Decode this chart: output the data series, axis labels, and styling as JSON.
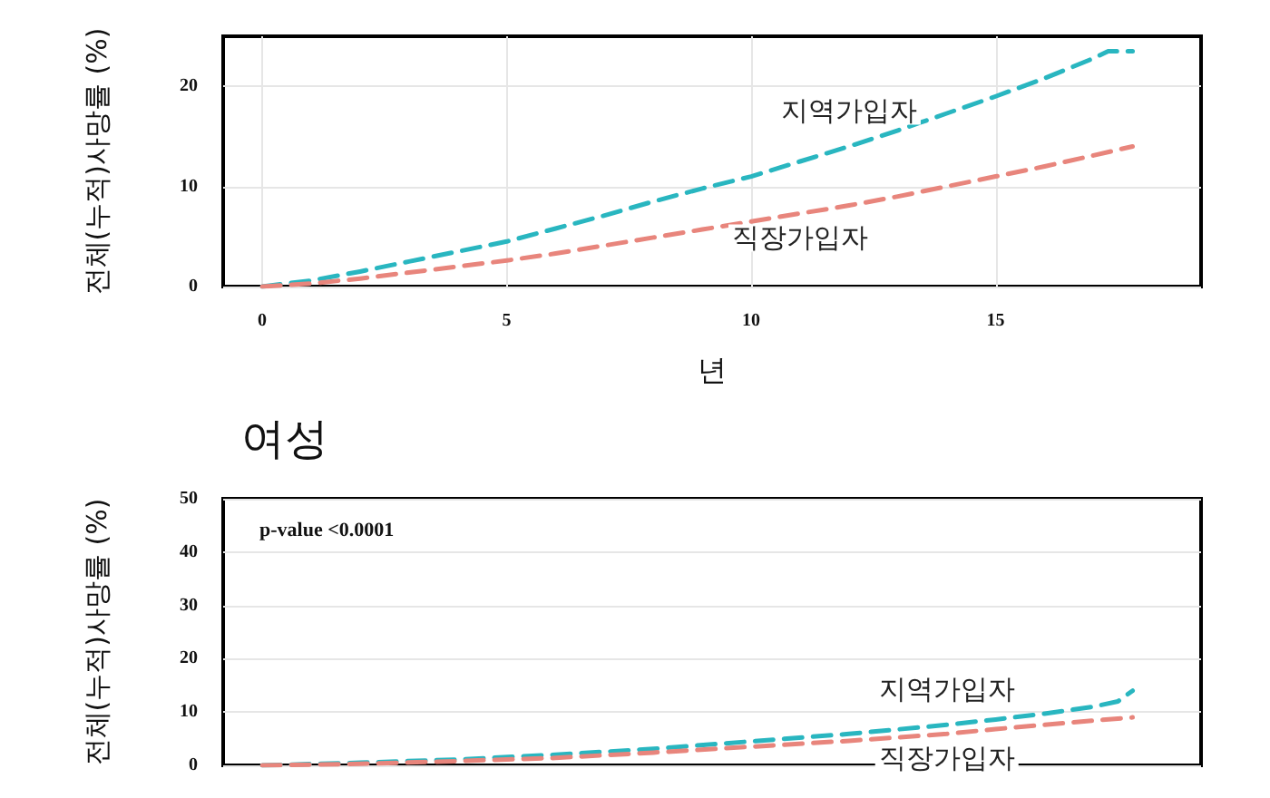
{
  "chart_data": [
    {
      "type": "line",
      "ylabel": "전체(누적)사망률 (%)",
      "xlabel": "년",
      "xlim": [
        -0.8,
        19.2
      ],
      "xticks": [
        0,
        5,
        10,
        15
      ],
      "ylim": [
        0,
        25
      ],
      "yticks": [
        0,
        10,
        20
      ],
      "grid": true,
      "legend": false,
      "marker": "none",
      "series": [
        {
          "name": "지역가입자",
          "color": "#29b6c0",
          "line_style": "dashed",
          "x": [
            0,
            1,
            2,
            3,
            4,
            5,
            6,
            7,
            8,
            9,
            10,
            11,
            12,
            13,
            14,
            15,
            16,
            17,
            17.3,
            17.8
          ],
          "values": [
            0,
            0.6,
            1.5,
            2.5,
            3.5,
            4.5,
            5.8,
            7.1,
            8.5,
            9.8,
            11,
            12.5,
            14,
            15.6,
            17.3,
            19,
            20.8,
            22.8,
            23.5,
            23.5
          ]
        },
        {
          "name": "직장가입자",
          "color": "#e8857c",
          "line_style": "dashed",
          "x": [
            0,
            1,
            2,
            3,
            4,
            5,
            6,
            7,
            8,
            9,
            10,
            11,
            12,
            13,
            14,
            15,
            16,
            17,
            17.8
          ],
          "values": [
            0,
            0.3,
            0.8,
            1.4,
            2,
            2.6,
            3.3,
            4.1,
            4.9,
            5.7,
            6.5,
            7.3,
            8.1,
            9,
            10,
            11,
            12,
            13.1,
            14
          ]
        }
      ]
    },
    {
      "type": "line",
      "title": "여성",
      "ylabel": "전체(누적)사망률 (%)",
      "xlim": [
        -0.8,
        19.2
      ],
      "ylim": [
        0,
        50
      ],
      "yticks": [
        0,
        10,
        20,
        30,
        40,
        50
      ],
      "tick_labels": "y",
      "grid": true,
      "legend": false,
      "marker": "none",
      "annotations": [
        "p-value <0.0001"
      ],
      "series": [
        {
          "name": "지역가입자",
          "color": "#29b6c0",
          "line_style": "dashed",
          "x": [
            0,
            2,
            4,
            6,
            8,
            10,
            12,
            14,
            15,
            16,
            17,
            17.5,
            17.8
          ],
          "values": [
            0,
            0.5,
            1.1,
            2,
            3.1,
            4.5,
            5.9,
            7.6,
            8.6,
            9.7,
            11,
            12,
            14
          ]
        },
        {
          "name": "직장가입자",
          "color": "#e8857c",
          "line_style": "dashed",
          "x": [
            0,
            2,
            4,
            6,
            8,
            10,
            12,
            14,
            15,
            16,
            17,
            17.8
          ],
          "values": [
            0,
            0.3,
            0.8,
            1.4,
            2.4,
            3.5,
            4.6,
            5.9,
            6.8,
            7.6,
            8.4,
            9
          ]
        }
      ]
    }
  ]
}
